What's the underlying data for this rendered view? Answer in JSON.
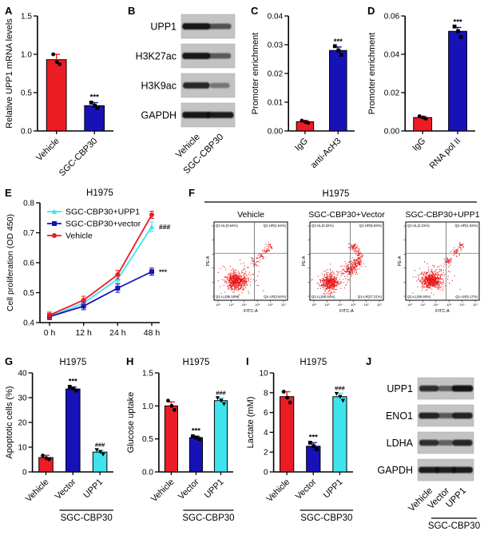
{
  "colors": {
    "red": "#ec1c24",
    "navy": "#1712b8",
    "cyan": "#3fe3ee",
    "axis": "#000000",
    "scatter_red": "#e8100f",
    "blot_strip": "#c3c3c3"
  },
  "panels": {
    "A": {
      "letter": "A"
    },
    "B": {
      "letter": "B"
    },
    "C": {
      "letter": "C"
    },
    "D": {
      "letter": "D"
    },
    "E": {
      "letter": "E"
    },
    "F": {
      "letter": "F"
    },
    "G": {
      "letter": "G"
    },
    "H": {
      "letter": "H"
    },
    "I": {
      "letter": "I"
    },
    "J": {
      "letter": "J"
    }
  },
  "chart_data": [
    {
      "panel": "A",
      "type": "bar",
      "ylabel": "Relative UPP1 mRNA levels",
      "ylim": [
        0,
        1.5
      ],
      "yticks": [
        [
          0,
          "0.0"
        ],
        [
          0.5,
          "0.5"
        ],
        [
          1.0,
          "1.0"
        ],
        [
          1.5,
          "1.5"
        ]
      ],
      "categories": [
        "Vehicle",
        "SGC-CBP30"
      ],
      "values": [
        0.93,
        0.33
      ],
      "errors": [
        0.07,
        0.04
      ],
      "bar_colors": [
        "red",
        "navy"
      ],
      "sig": [
        "",
        "***"
      ],
      "dots": [
        [
          1.0,
          0.9,
          0.87
        ],
        [
          0.37,
          0.33,
          0.3
        ]
      ]
    },
    {
      "panel": "B",
      "type": "western_blot",
      "rows": [
        {
          "label": "UPP1",
          "bands": [
            0.95,
            0.55
          ]
        },
        {
          "label": "H3K27ac",
          "bands": [
            0.95,
            0.5
          ]
        },
        {
          "label": "H3K9ac",
          "bands": [
            0.85,
            0.3
          ]
        },
        {
          "label": "GAPDH",
          "bands": [
            0.95,
            0.92
          ]
        }
      ],
      "lanes": [
        "Vehicle",
        "SGC-CBP30"
      ]
    },
    {
      "panel": "C",
      "type": "bar",
      "ylabel": "Promoter enrichment",
      "ylim": [
        0,
        0.04
      ],
      "yticks": [
        [
          0,
          "0.00"
        ],
        [
          0.01,
          "0.01"
        ],
        [
          0.02,
          "0.02"
        ],
        [
          0.03,
          "0.03"
        ],
        [
          0.04,
          "0.04"
        ]
      ],
      "categories": [
        "IgG",
        "anti-AcH3"
      ],
      "values": [
        0.0032,
        0.028
      ],
      "errors": [
        0.0005,
        0.0012
      ],
      "bar_colors": [
        "red",
        "navy"
      ],
      "sig": [
        "",
        "***"
      ],
      "dots": [
        [
          0.0036,
          0.0031,
          0.0028
        ],
        [
          0.0295,
          0.028,
          0.0265
        ]
      ]
    },
    {
      "panel": "D",
      "type": "bar",
      "ylabel": "Promoter enrichment",
      "ylim": [
        0,
        0.06
      ],
      "yticks": [
        [
          0,
          "0.00"
        ],
        [
          0.02,
          "0.02"
        ],
        [
          0.04,
          "0.04"
        ],
        [
          0.06,
          "0.06"
        ]
      ],
      "categories": [
        "IgG",
        "RNA pol II"
      ],
      "values": [
        0.007,
        0.052
      ],
      "errors": [
        0.0007,
        0.002
      ],
      "bar_colors": [
        "red",
        "navy"
      ],
      "sig": [
        "",
        "***"
      ],
      "dots": [
        [
          0.0077,
          0.007,
          0.0064
        ],
        [
          0.0545,
          0.052,
          0.049
        ]
      ]
    },
    {
      "panel": "E",
      "type": "line",
      "title": "H1975",
      "ylabel": "Cell proliferation (OD 450)",
      "ylim": [
        0.4,
        0.8
      ],
      "yticks": [
        [
          0.4,
          "0.4"
        ],
        [
          0.5,
          "0.5"
        ],
        [
          0.6,
          "0.6"
        ],
        [
          0.7,
          "0.7"
        ],
        [
          0.8,
          "0.8"
        ]
      ],
      "x_labels": [
        "0 h",
        "12 h",
        "24 h",
        "48 h"
      ],
      "series": [
        {
          "name": "SGC-CBP30+UPP1",
          "color": "cyan",
          "marker": "triangle",
          "values": [
            0.42,
            0.465,
            0.545,
            0.72
          ],
          "errors": [
            0.01,
            0.012,
            0.012,
            0.016
          ],
          "annotation": "###"
        },
        {
          "name": "SGC-CBP30+vector",
          "color": "navy",
          "marker": "square",
          "values": [
            0.42,
            0.455,
            0.515,
            0.57
          ],
          "errors": [
            0.01,
            0.012,
            0.014,
            0.012
          ],
          "annotation": "***"
        },
        {
          "name": "Vehicle",
          "color": "red",
          "marker": "circle",
          "values": [
            0.425,
            0.475,
            0.56,
            0.76
          ],
          "errors": [
            0.01,
            0.013,
            0.014,
            0.012
          ],
          "annotation": ""
        }
      ]
    },
    {
      "panel": "F",
      "type": "flow_cytometry",
      "title": "H1975",
      "xlabel": "FITC-A",
      "ylabel": "PE-A",
      "x_ticks": [
        "10²",
        "10³",
        "10⁴",
        "10⁵",
        "10⁶",
        "10⁷"
      ],
      "plots": [
        {
          "label": "Vehicle",
          "quadrants": {
            "UL": "Q1-UL(0.64%)",
            "UR": "Q1-UR(1.54%)",
            "LL": "Q1-LL(95.18%)",
            "LR": "Q1-LR(2.64%)"
          },
          "clusters": [
            [
              0.3,
              0.76,
              0.07,
              0.05,
              420
            ],
            [
              0.32,
              0.73,
              0.13,
              0.09,
              140
            ],
            [
              0.55,
              0.52,
              0.03,
              0.03,
              26
            ],
            [
              0.63,
              0.44,
              0.028,
              0.028,
              24
            ],
            [
              0.71,
              0.36,
              0.024,
              0.024,
              26
            ],
            [
              0.76,
              0.3,
              0.02,
              0.02,
              16
            ]
          ]
        },
        {
          "label": "SGC-CBP30+Vector",
          "quadrants": {
            "UL": "Q1-UL(0.32%)",
            "UR": "Q1-UR(5.93%)",
            "LL": "Q1-LL(66.54%)",
            "LR": "Q1-LR(27.21%)"
          },
          "clusters": [
            [
              0.27,
              0.78,
              0.06,
              0.05,
              330
            ],
            [
              0.3,
              0.74,
              0.11,
              0.08,
              110
            ],
            [
              0.55,
              0.61,
              0.05,
              0.04,
              120
            ],
            [
              0.63,
              0.53,
              0.04,
              0.032,
              80
            ],
            [
              0.6,
              0.33,
              0.03,
              0.03,
              55
            ],
            [
              0.67,
              0.42,
              0.03,
              0.03,
              40
            ]
          ]
        },
        {
          "label": "SGC-CBP30+UPP1",
          "quadrants": {
            "UL": "Q1-UL(2.31%)",
            "UR": "Q1-UR(1.92%)",
            "LL": "Q1-LL(90.60%)",
            "LR": "Q1-LR(5.17%)"
          },
          "clusters": [
            [
              0.35,
              0.75,
              0.07,
              0.05,
              430
            ],
            [
              0.37,
              0.71,
              0.12,
              0.08,
              130
            ],
            [
              0.58,
              0.5,
              0.03,
              0.03,
              36
            ],
            [
              0.68,
              0.38,
              0.026,
              0.026,
              30
            ],
            [
              0.75,
              0.3,
              0.02,
              0.02,
              22
            ]
          ]
        }
      ]
    },
    {
      "panel": "G",
      "type": "bar",
      "title": "H1975",
      "ylabel": "Apoptotic cells (%)",
      "ylim": [
        0,
        40
      ],
      "yticks": [
        [
          0,
          "0"
        ],
        [
          10,
          "10"
        ],
        [
          20,
          "20"
        ],
        [
          30,
          "30"
        ],
        [
          40,
          "40"
        ]
      ],
      "categories": [
        "Vehicle",
        "Vector",
        "UPP1"
      ],
      "values": [
        5.8,
        33.5,
        8.0
      ],
      "errors": [
        0.9,
        0.8,
        0.8
      ],
      "bar_colors": [
        "red",
        "navy",
        "cyan"
      ],
      "sig": [
        "",
        "***",
        "###"
      ],
      "dots": [
        [
          6.6,
          5.6,
          5.1
        ],
        [
          34.4,
          33.6,
          32.9
        ],
        [
          8.9,
          8.1,
          7.1
        ]
      ],
      "group": {
        "label": "SGC-CBP30",
        "span": [
          1,
          2
        ]
      }
    },
    {
      "panel": "H",
      "type": "bar",
      "title": "H1975",
      "ylabel": "Glucose uptake",
      "ylim": [
        0,
        1.5
      ],
      "yticks": [
        [
          0,
          "0.0"
        ],
        [
          0.5,
          "0.5"
        ],
        [
          1.0,
          "1.0"
        ],
        [
          1.5,
          "1.5"
        ]
      ],
      "categories": [
        "Vehicle",
        "Vector",
        "UPP1"
      ],
      "values": [
        1.0,
        0.52,
        1.08
      ],
      "errors": [
        0.06,
        0.02,
        0.04
      ],
      "bar_colors": [
        "red",
        "navy",
        "cyan"
      ],
      "sig": [
        "",
        "***",
        "###"
      ],
      "dots": [
        [
          1.08,
          1.0,
          0.94
        ],
        [
          0.54,
          0.52,
          0.5
        ],
        [
          1.12,
          1.08,
          1.03
        ]
      ],
      "group": {
        "label": "SGC-CBP30",
        "span": [
          1,
          2
        ]
      }
    },
    {
      "panel": "I",
      "type": "bar",
      "title": "H1975",
      "ylabel": "Lactate (mM)",
      "ylim": [
        0,
        10
      ],
      "yticks": [
        [
          0,
          "0"
        ],
        [
          2,
          "2"
        ],
        [
          4,
          "4"
        ],
        [
          6,
          "6"
        ],
        [
          8,
          "8"
        ],
        [
          10,
          "10"
        ]
      ],
      "categories": [
        "Vehicle",
        "Vector",
        "UPP1"
      ],
      "values": [
        7.6,
        2.6,
        7.6
      ],
      "errors": [
        0.5,
        0.35,
        0.35
      ],
      "bar_colors": [
        "red",
        "navy",
        "cyan"
      ],
      "sig": [
        "",
        "***",
        "###"
      ],
      "dots": [
        [
          8.1,
          7.5,
          7.0
        ],
        [
          2.95,
          2.6,
          2.3
        ],
        [
          7.9,
          7.6,
          7.2
        ]
      ],
      "group": {
        "label": "SGC-CBP30",
        "span": [
          1,
          2
        ]
      }
    },
    {
      "panel": "J",
      "type": "western_blot",
      "rows": [
        {
          "label": "UPP1",
          "bands": [
            0.8,
            0.45,
            0.97
          ]
        },
        {
          "label": "ENO1",
          "bands": [
            0.88,
            0.5,
            0.88
          ]
        },
        {
          "label": "LDHA",
          "bands": [
            0.8,
            0.45,
            0.85
          ]
        },
        {
          "label": "GAPDH",
          "bands": [
            0.92,
            0.9,
            0.92
          ]
        }
      ],
      "lanes": [
        "Vehicle",
        "Vector",
        "UPP1"
      ],
      "group": {
        "label": "SGC-CBP30",
        "span": [
          1,
          2
        ]
      }
    }
  ]
}
